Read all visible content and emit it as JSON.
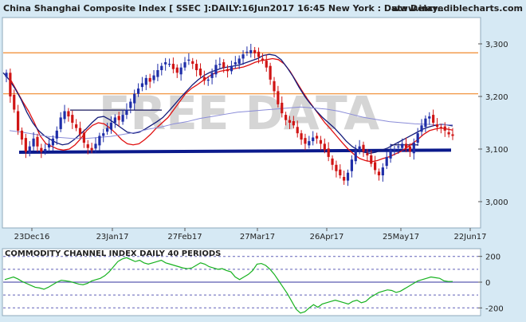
{
  "header": {
    "title": "China Shanghai Composite Index [ SSEC ]:DAILY:16Jun2017 16:45 New York : Data Delay..",
    "site": "www.incrediblecharts.com"
  },
  "watermark": "FREE DATA",
  "colors": {
    "background": "#d6e9f4",
    "plot_bg": "#ffffff",
    "up_candle": "#1f2ea8",
    "down_candle": "#d01515",
    "ma_short": "#e01010",
    "ma_mid": "#141c7a",
    "ma_long": "#8a8cd8",
    "hline": "#f08a2c",
    "trendline": "#0b1a8c",
    "cci_line": "#17b21f",
    "cci_band": "#6060b8",
    "watermark": "#c8c8c8"
  },
  "chart_data": [
    {
      "type": "candlestick",
      "title": "China Shanghai Composite Index [ SSEC ]:DAILY:16Jun2017 16:45 New York : Data Delay..",
      "x_tick_labels": [
        "23Dec16",
        "23Jan17",
        "27Feb17",
        "27Mar17",
        "26Apr17",
        "25May17",
        "22Jun17"
      ],
      "y_ticks": [
        3000,
        3100,
        3200,
        3300
      ],
      "y_tick_labels": [
        "3,000",
        "3,100",
        "3,200",
        "3,300"
      ],
      "ylim": [
        2950,
        3350
      ],
      "horizontal_lines": [
        3283,
        3205
      ],
      "trendlines": [
        {
          "style": "thick",
          "from": {
            "x": "13Dec16",
            "y": 3094
          },
          "to": {
            "x": "08Jun17",
            "y": 3098
          }
        },
        {
          "style": "thin",
          "from": {
            "x": "16Jan17",
            "y": 3174
          },
          "to": {
            "x": "17Feb17",
            "y": 3174
          }
        },
        {
          "style": "thin",
          "from": {
            "x": "19May17",
            "y": 3108
          },
          "to": {
            "x": "01Jun17",
            "y": 3108
          }
        }
      ],
      "close_path": [
        3245,
        3200,
        3175,
        3135,
        3118,
        3095,
        3105,
        3120,
        3105,
        3095,
        3100,
        3110,
        3120,
        3135,
        3160,
        3172,
        3162,
        3150,
        3140,
        3128,
        3112,
        3102,
        3098,
        3110,
        3125,
        3130,
        3140,
        3150,
        3160,
        3155,
        3165,
        3175,
        3190,
        3205,
        3215,
        3225,
        3235,
        3228,
        3240,
        3250,
        3258,
        3265,
        3262,
        3252,
        3245,
        3255,
        3265,
        3270,
        3262,
        3250,
        3240,
        3230,
        3232,
        3245,
        3260,
        3262,
        3255,
        3248,
        3258,
        3265,
        3272,
        3280,
        3285,
        3288,
        3282,
        3275,
        3268,
        3255,
        3232,
        3210,
        3185,
        3168,
        3155,
        3150,
        3145,
        3130,
        3118,
        3110,
        3115,
        3122,
        3120,
        3110,
        3098,
        3085,
        3070,
        3058,
        3050,
        3040,
        3055,
        3080,
        3098,
        3105,
        3095,
        3088,
        3072,
        3060,
        3050,
        3065,
        3085,
        3098,
        3100,
        3105,
        3110,
        3102,
        3095,
        3112,
        3130,
        3145,
        3158,
        3162,
        3150,
        3142,
        3140,
        3135,
        3128,
        3125
      ],
      "moving_averages": [
        {
          "path": [
            3230,
            3210,
            3190,
            3172,
            3150,
            3125,
            3110,
            3105,
            3100,
            3098,
            3100,
            3108,
            3120,
            3135,
            3145,
            3150,
            3148,
            3140,
            3130,
            3118,
            3110,
            3108,
            3110,
            3118,
            3128,
            3140,
            3150,
            3160,
            3175,
            3190,
            3205,
            3215,
            3222,
            3230,
            3238,
            3244,
            3248,
            3250,
            3252,
            3254,
            3256,
            3260,
            3265,
            3268,
            3270,
            3272,
            3270,
            3262,
            3248,
            3230,
            3212,
            3195,
            3180,
            3165,
            3150,
            3138,
            3125,
            3112,
            3100,
            3090,
            3082,
            3078,
            3076,
            3078,
            3082,
            3085,
            3090,
            3095,
            3102,
            3110,
            3118,
            3128,
            3135,
            3138,
            3140,
            3138,
            3136
          ]
        },
        {
          "path": [
            3245,
            3232,
            3215,
            3195,
            3170,
            3150,
            3135,
            3125,
            3118,
            3112,
            3108,
            3110,
            3118,
            3128,
            3138,
            3150,
            3160,
            3162,
            3156,
            3148,
            3140,
            3132,
            3130,
            3132,
            3138,
            3145,
            3152,
            3160,
            3172,
            3185,
            3198,
            3210,
            3222,
            3232,
            3240,
            3246,
            3250,
            3254,
            3256,
            3258,
            3260,
            3264,
            3268,
            3272,
            3278,
            3280,
            3278,
            3270,
            3255,
            3238,
            3218,
            3200,
            3185,
            3172,
            3160,
            3150,
            3140,
            3128,
            3115,
            3105,
            3098,
            3094,
            3092,
            3094,
            3098,
            3102,
            3108,
            3114,
            3120,
            3126,
            3132,
            3138,
            3142,
            3145,
            3147,
            3146,
            3144
          ]
        },
        {
          "path": [
            3135,
            3132,
            3128,
            3124,
            3122,
            3120,
            3120,
            3122,
            3124,
            3128,
            3132,
            3138,
            3142,
            3148,
            3152,
            3158,
            3162,
            3166,
            3170,
            3172,
            3174,
            3176,
            3178,
            3180,
            3178,
            3176,
            3172,
            3166,
            3160,
            3156,
            3152,
            3150,
            3148,
            3147,
            3146,
            3146
          ]
        }
      ]
    },
    {
      "type": "line",
      "title": "COMMODITY CHANNEL INDEX DAILY 40 PERIODS",
      "y_ticks": [
        200,
        0,
        -200
      ],
      "y_tick_labels": [
        "200",
        "0",
        "-200"
      ],
      "bands": [
        200,
        100,
        -100,
        -200
      ],
      "ylim": [
        -260,
        260
      ],
      "series": [
        {
          "values": [
            20,
            30,
            40,
            25,
            5,
            -10,
            -25,
            -40,
            -45,
            -55,
            -40,
            -20,
            0,
            15,
            10,
            5,
            -5,
            -15,
            -20,
            -10,
            10,
            20,
            30,
            50,
            80,
            120,
            160,
            180,
            190,
            175,
            160,
            170,
            150,
            140,
            150,
            160,
            170,
            150,
            140,
            130,
            120,
            110,
            105,
            110,
            130,
            150,
            140,
            120,
            110,
            100,
            105,
            90,
            80,
            40,
            20,
            40,
            60,
            90,
            140,
            145,
            130,
            100,
            60,
            10,
            -40,
            -90,
            -150,
            -210,
            -240,
            -230,
            -200,
            -175,
            -195,
            -170,
            -160,
            -150,
            -140,
            -150,
            -160,
            -170,
            -150,
            -140,
            -160,
            -150,
            -120,
            -100,
            -80,
            -70,
            -60,
            -65,
            -80,
            -70,
            -50,
            -30,
            -10,
            10,
            20,
            30,
            40,
            35,
            30,
            10,
            5,
            5
          ]
        }
      ]
    }
  ]
}
